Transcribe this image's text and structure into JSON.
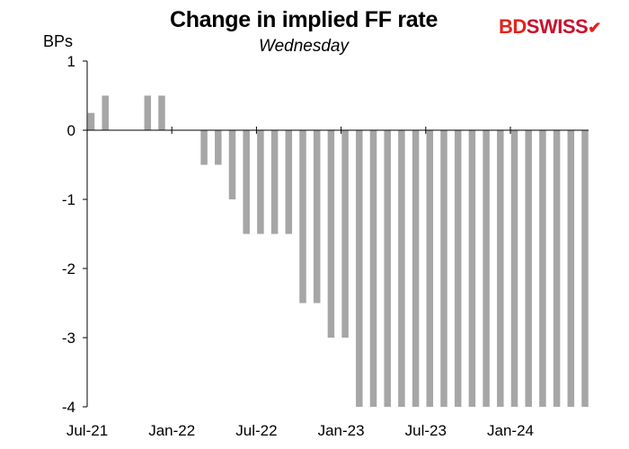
{
  "title": "Change in implied FF rate",
  "subtitle": "Wednesday",
  "logo_text": "BDSWISS",
  "chart_data": {
    "type": "bar",
    "title": "Change in implied FF rate",
    "subtitle": "Wednesday",
    "ylabel": "BPs",
    "ylim": [
      -4,
      1
    ],
    "yticks": [
      1,
      0,
      -1,
      -2,
      -3,
      -4
    ],
    "xticks": [
      "Jul-21",
      "Jan-22",
      "Jul-22",
      "Jan-23",
      "Jul-23",
      "Jan-24"
    ],
    "grid": false,
    "bar_color": "#a6a6a6",
    "values": [
      0.25,
      0.5,
      0,
      0,
      0.5,
      0.5,
      0,
      0,
      -0.5,
      -0.5,
      -1,
      -1.5,
      -1.5,
      -1.5,
      -1.5,
      -2.5,
      -2.5,
      -3,
      -3,
      -4,
      -4,
      -4,
      -4,
      -4,
      -4,
      -4,
      -4,
      -4,
      -4,
      -4,
      -4,
      -4,
      -4,
      -4,
      -4,
      -4
    ]
  }
}
